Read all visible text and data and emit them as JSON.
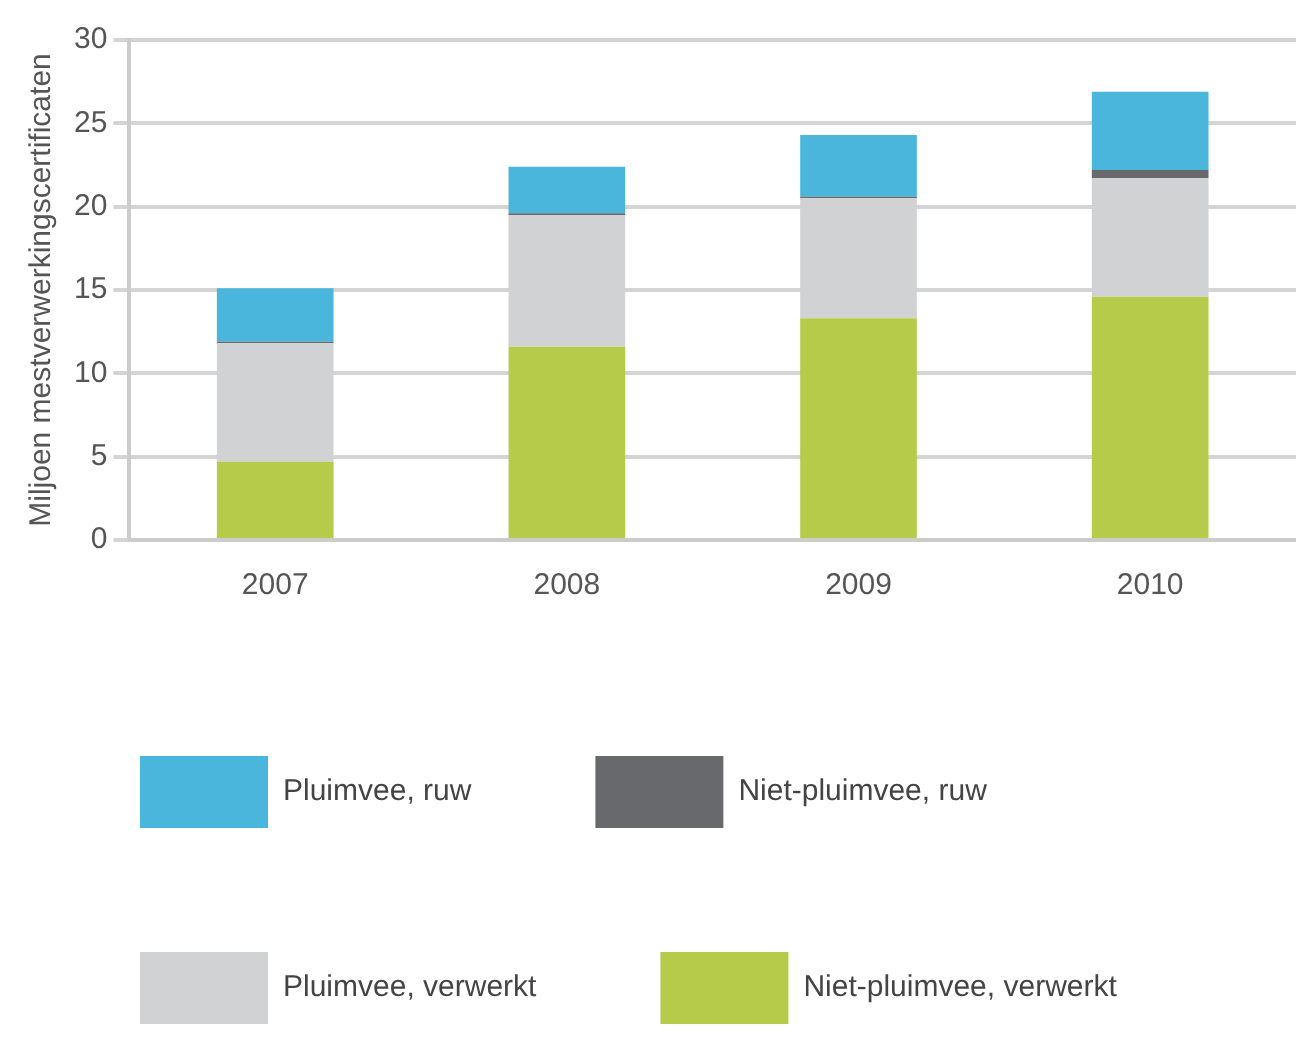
{
  "chart_data": {
    "type": "bar",
    "stacked": true,
    "ylabel": "Miljoen mestverwerkingscertificaten",
    "categories": [
      "2007",
      "2008",
      "2009",
      "2010"
    ],
    "series": [
      {
        "name": "Niet-pluimvee, verwerkt",
        "color": "#b7cb4b",
        "values": [
          4.7,
          11.6,
          13.3,
          14.6
        ]
      },
      {
        "name": "Pluimvee, verwerkt",
        "color": "#d1d2d4",
        "values": [
          7.1,
          7.9,
          7.2,
          7.1
        ]
      },
      {
        "name": "Niet-pluimvee, ruw",
        "color": "#68696c",
        "values": [
          0.1,
          0.1,
          0.1,
          0.5
        ]
      },
      {
        "name": "Pluimvee, ruw",
        "color": "#4ab6dc",
        "values": [
          3.2,
          2.8,
          3.7,
          4.7
        ]
      }
    ],
    "ylim": [
      0,
      30
    ],
    "yticks": [
      0,
      5,
      10,
      15,
      20,
      25,
      30
    ],
    "grid": "y",
    "legend": "bottom"
  }
}
